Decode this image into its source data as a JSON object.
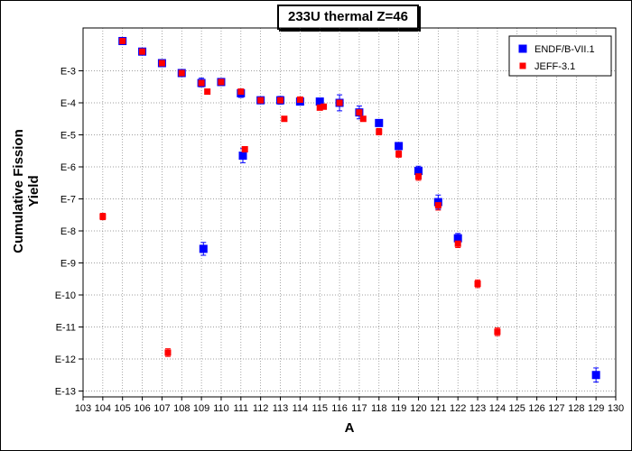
{
  "chart_data": {
    "type": "scatter",
    "title": "233U thermal Z=46",
    "xlabel": "A",
    "ylabel": "Cumulative Fission Yield",
    "xlim": [
      103,
      130
    ],
    "ylim_exponent": [
      -13,
      -2
    ],
    "log_y": true,
    "grid": true,
    "legend_position": "top-right",
    "x_ticks": [
      103,
      104,
      105,
      106,
      107,
      108,
      109,
      110,
      111,
      112,
      113,
      114,
      115,
      116,
      117,
      118,
      119,
      120,
      121,
      122,
      123,
      124,
      125,
      126,
      127,
      128,
      129,
      130
    ],
    "y_ticks": [
      {
        "exp": -3,
        "label": "E-3"
      },
      {
        "exp": -4,
        "label": "E-4"
      },
      {
        "exp": -5,
        "label": "E-5"
      },
      {
        "exp": -6,
        "label": "E-6"
      },
      {
        "exp": -7,
        "label": "E-7"
      },
      {
        "exp": -8,
        "label": "E-8"
      },
      {
        "exp": -9,
        "label": "E-9"
      },
      {
        "exp": -10,
        "label": "E-10"
      },
      {
        "exp": -11,
        "label": "E-11"
      },
      {
        "exp": -12,
        "label": "E-12"
      },
      {
        "exp": -13,
        "label": "E-13"
      }
    ],
    "series": [
      {
        "name": "ENDF/B-VII.1",
        "color": "#0000ff",
        "marker": "square-large",
        "points": [
          {
            "x": 105,
            "y_exp": -2.07
          },
          {
            "x": 106,
            "y_exp": -2.4
          },
          {
            "x": 107,
            "y_exp": -2.76
          },
          {
            "x": 108,
            "y_exp": -3.07
          },
          {
            "x": 109,
            "y_exp": -3.38,
            "err": [
              0.15,
              0.12
            ]
          },
          {
            "x": 109.1,
            "y_exp": -8.56,
            "err": [
              0.2,
              0.2
            ]
          },
          {
            "x": 110,
            "y_exp": -3.35
          },
          {
            "x": 111,
            "y_exp": -3.7,
            "err": [
              0.13,
              0.13
            ]
          },
          {
            "x": 111.1,
            "y_exp": -5.65,
            "err": [
              0.22,
              0.22
            ]
          },
          {
            "x": 112,
            "y_exp": -3.92
          },
          {
            "x": 113,
            "y_exp": -3.92,
            "err": [
              0.12,
              0.12
            ]
          },
          {
            "x": 114,
            "y_exp": -3.96,
            "err": [
              0.1,
              0.1
            ]
          },
          {
            "x": 115,
            "y_exp": -3.96
          },
          {
            "x": 116,
            "y_exp": -4.0,
            "err": [
              0.25,
              0.25
            ]
          },
          {
            "x": 117,
            "y_exp": -4.3,
            "err": [
              0.2,
              0.2
            ]
          },
          {
            "x": 118,
            "y_exp": -4.63
          },
          {
            "x": 119,
            "y_exp": -5.35,
            "err": [
              0.1,
              0.1
            ]
          },
          {
            "x": 120,
            "y_exp": -6.13,
            "err": [
              0.15,
              0.15
            ]
          },
          {
            "x": 121,
            "y_exp": -7.1,
            "err": [
              0.22,
              0.22
            ]
          },
          {
            "x": 122,
            "y_exp": -8.23,
            "err": [
              0.15,
              0.15
            ]
          },
          {
            "x": 129,
            "y_exp": -12.5,
            "err": [
              0.22,
              0.22
            ]
          }
        ]
      },
      {
        "name": "JEFF-3.1",
        "color": "#ff0000",
        "marker": "square-small",
        "points": [
          {
            "x": 104,
            "y_exp": -7.55,
            "err": [
              0.1,
              0.1
            ]
          },
          {
            "x": 105,
            "y_exp": -2.07
          },
          {
            "x": 106,
            "y_exp": -2.4
          },
          {
            "x": 107,
            "y_exp": -2.76
          },
          {
            "x": 107.3,
            "y_exp": -11.8,
            "err": [
              0.12,
              0.12
            ]
          },
          {
            "x": 108,
            "y_exp": -3.07
          },
          {
            "x": 109,
            "y_exp": -3.38
          },
          {
            "x": 109.3,
            "y_exp": -3.65
          },
          {
            "x": 110,
            "y_exp": -3.35
          },
          {
            "x": 111,
            "y_exp": -3.65
          },
          {
            "x": 111.2,
            "y_exp": -5.45
          },
          {
            "x": 112,
            "y_exp": -3.92
          },
          {
            "x": 113,
            "y_exp": -3.92
          },
          {
            "x": 113.2,
            "y_exp": -4.5
          },
          {
            "x": 114,
            "y_exp": -3.9
          },
          {
            "x": 115,
            "y_exp": -4.15
          },
          {
            "x": 115.2,
            "y_exp": -4.12
          },
          {
            "x": 116,
            "y_exp": -4.0
          },
          {
            "x": 117,
            "y_exp": -4.3
          },
          {
            "x": 117.2,
            "y_exp": -4.5
          },
          {
            "x": 118,
            "y_exp": -4.9,
            "err": [
              0.1,
              0.1
            ]
          },
          {
            "x": 119,
            "y_exp": -5.6,
            "err": [
              0.1,
              0.1
            ]
          },
          {
            "x": 120,
            "y_exp": -6.3,
            "err": [
              0.12,
              0.12
            ]
          },
          {
            "x": 121,
            "y_exp": -7.2,
            "err": [
              0.15,
              0.15
            ]
          },
          {
            "x": 122,
            "y_exp": -8.4,
            "err": [
              0.12,
              0.12
            ]
          },
          {
            "x": 123,
            "y_exp": -9.65,
            "err": [
              0.12,
              0.12
            ]
          },
          {
            "x": 124,
            "y_exp": -11.15,
            "err": [
              0.12,
              0.12
            ]
          }
        ]
      }
    ]
  }
}
